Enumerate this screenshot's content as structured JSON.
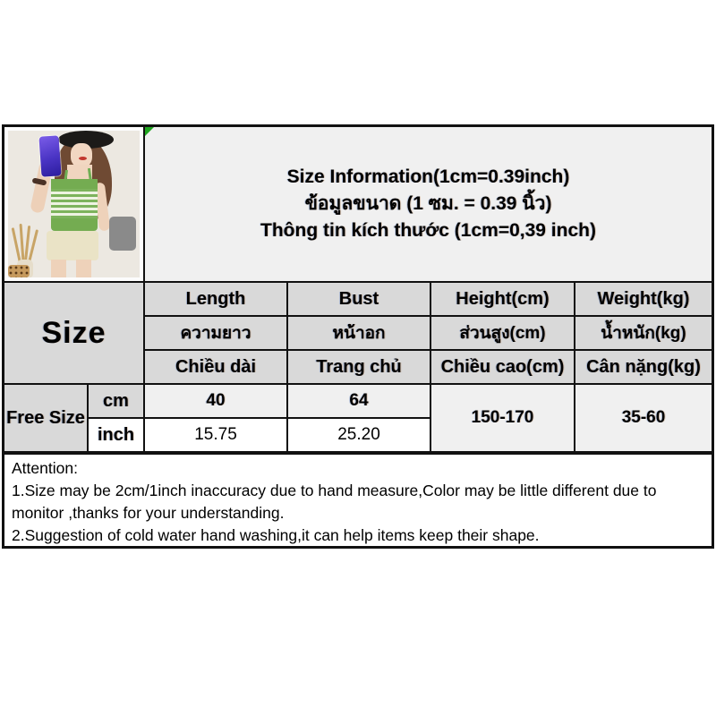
{
  "title": {
    "en": "Size Information(1cm=0.39inch)",
    "th": "ข้อมูลขนาด (1 ซม. = 0.39 นิ้ว)",
    "vi": "Thông tin kích thước (1cm=0,39 inch)"
  },
  "table": {
    "size_label": "Size",
    "row_label": "Free Size",
    "unit_cm": "cm",
    "unit_inch": "inch",
    "columns": {
      "en": [
        "Length",
        "Bust",
        "Height(cm)",
        "Weight(kg)"
      ],
      "th": [
        "ความยาว",
        "หน้าอก",
        "ส่วนสูง(cm)",
        "น้ำหนัก(kg)"
      ],
      "vi": [
        "Chiều dài",
        "Trang chủ",
        "Chiều cao(cm)",
        "Cân nặng(kg)"
      ]
    },
    "values": {
      "cm": {
        "length": "40",
        "bust": "64"
      },
      "inch": {
        "length": "15.75",
        "bust": "25.20"
      },
      "height_range": "150-170",
      "weight_range": "35-60"
    }
  },
  "attention": {
    "heading": "Attention:",
    "line1": "1.Size may be 2cm/1inch inaccuracy due to hand measure,Color may be little different due to monitor ,thanks for your understanding.",
    "line2": "2.Suggestion of cold water hand washing,it can help items keep their shape."
  },
  "colors": {
    "header_gray": "#d9d9d9",
    "row_light_gray": "#f0f0f0",
    "border_black": "#111111",
    "marker_green": "#1fa51f",
    "top_green": "#74ac51"
  }
}
